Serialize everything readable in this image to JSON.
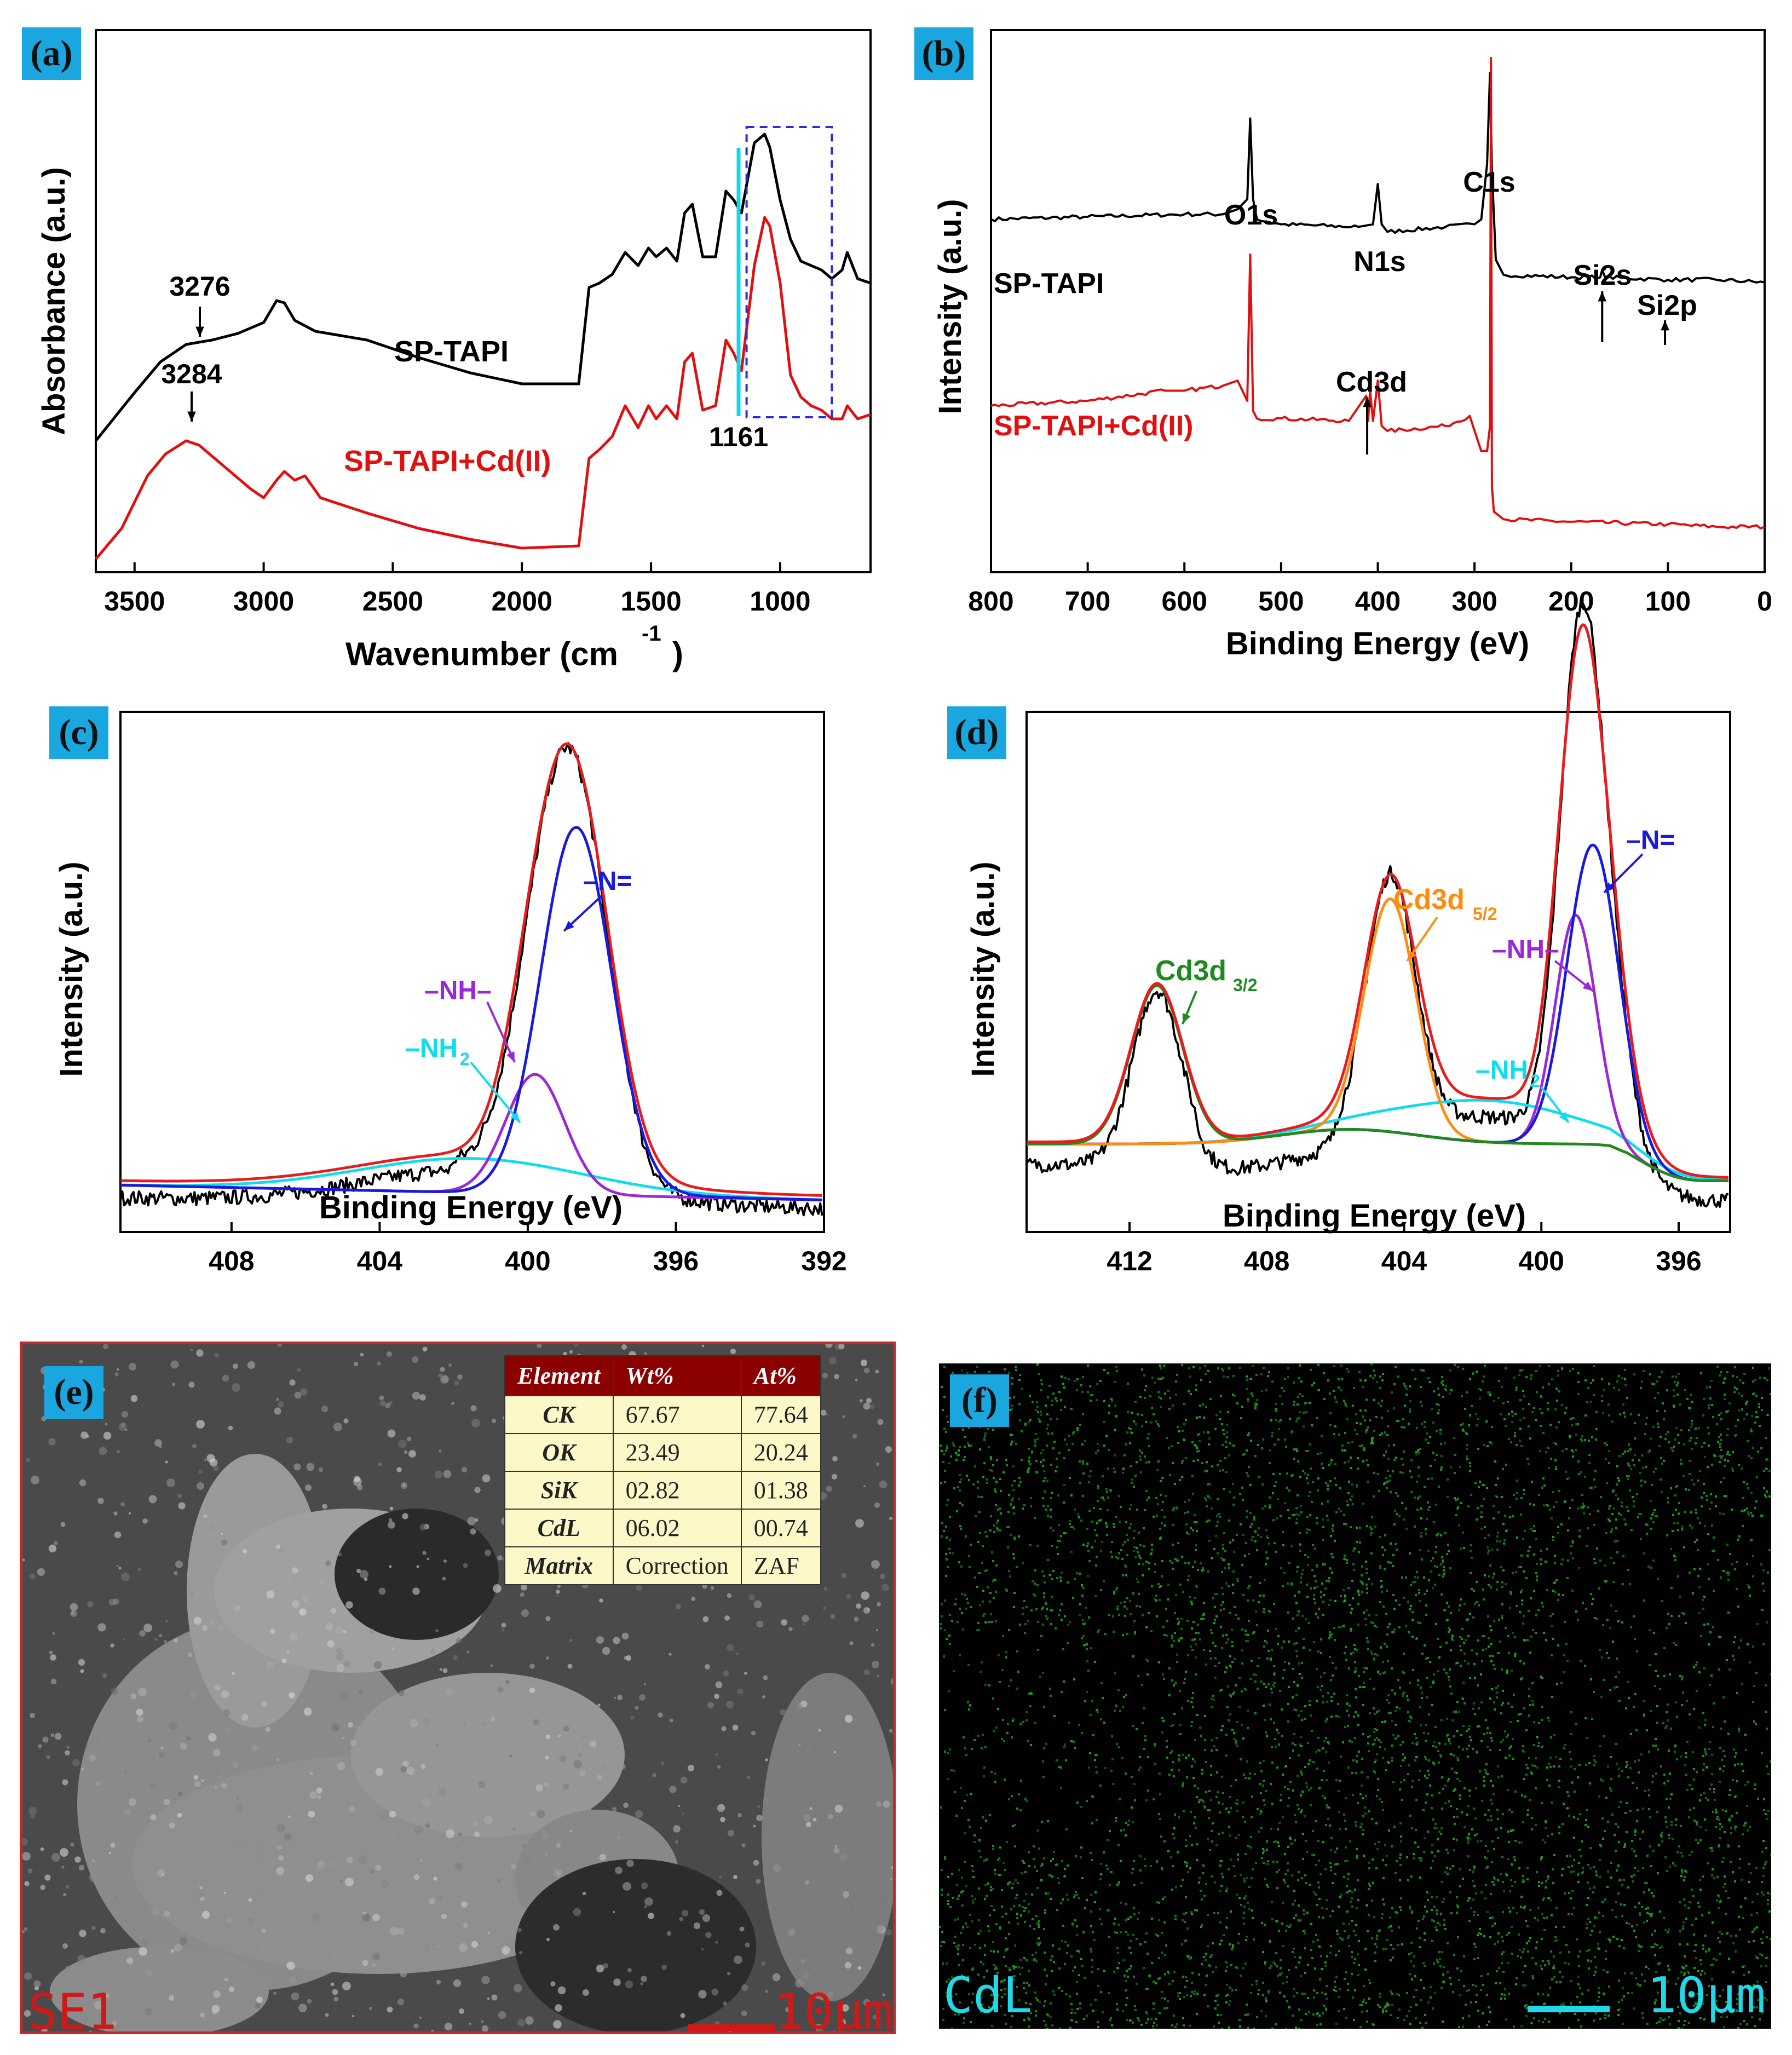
{
  "panels": {
    "a": {
      "label": "(a)",
      "chart_data": {
        "type": "line",
        "xlabel": "Wavenumber (cm",
        "xlabel_sup": "-1",
        "xlabel_end": ")",
        "ylabel": "Absorbance (a.u.)",
        "xlim": [
          3650,
          650
        ],
        "xticks": [
          3500,
          3000,
          2500,
          2000,
          1500,
          1000
        ],
        "series": [
          {
            "name": "SP-TAPI",
            "color": "#000000",
            "x": [
              3650,
              3500,
              3400,
              3300,
              3200,
              3100,
              3000,
              2950,
              2920,
              2880,
              2800,
              2600,
              2400,
              2200,
              2000,
              1780,
              1740,
              1700,
              1650,
              1600,
              1550,
              1510,
              1480,
              1440,
              1400,
              1370,
              1340,
              1300,
              1250,
              1210,
              1180,
              1150,
              1100,
              1060,
              1040,
              1000,
              960,
              920,
              880,
              840,
              800,
              760,
              740,
              700,
              650
            ],
            "y": [
              0.3,
              0.41,
              0.48,
              0.52,
              0.53,
              0.545,
              0.57,
              0.62,
              0.615,
              0.575,
              0.55,
              0.53,
              0.49,
              0.455,
              0.43,
              0.43,
              0.65,
              0.66,
              0.68,
              0.73,
              0.7,
              0.74,
              0.72,
              0.74,
              0.71,
              0.82,
              0.84,
              0.72,
              0.72,
              0.87,
              0.85,
              0.82,
              0.98,
              1.0,
              0.97,
              0.85,
              0.76,
              0.71,
              0.7,
              0.69,
              0.67,
              0.69,
              0.73,
              0.67,
              0.66
            ]
          },
          {
            "name": "SP-TAPI+Cd(II)",
            "color": "#e01010",
            "x": [
              3650,
              3550,
              3450,
              3380,
              3300,
              3250,
              3150,
              3050,
              3000,
              2950,
              2920,
              2880,
              2840,
              2780,
              2600,
              2400,
              2200,
              2000,
              1780,
              1740,
              1700,
              1650,
              1600,
              1550,
              1510,
              1480,
              1440,
              1400,
              1370,
              1340,
              1300,
              1250,
              1210,
              1180,
              1150,
              1100,
              1060,
              1040,
              1000,
              960,
              920,
              880,
              840,
              800,
              760,
              740,
              700,
              650
            ],
            "y": [
              0.03,
              0.1,
              0.22,
              0.27,
              0.3,
              0.29,
              0.24,
              0.19,
              0.17,
              0.21,
              0.23,
              0.21,
              0.22,
              0.17,
              0.135,
              0.1,
              0.075,
              0.055,
              0.06,
              0.26,
              0.28,
              0.31,
              0.38,
              0.33,
              0.38,
              0.35,
              0.38,
              0.35,
              0.48,
              0.5,
              0.37,
              0.38,
              0.53,
              0.5,
              0.46,
              0.7,
              0.81,
              0.79,
              0.66,
              0.45,
              0.4,
              0.38,
              0.37,
              0.35,
              0.35,
              0.38,
              0.35,
              0.36
            ]
          }
        ],
        "annotations": [
          "3276",
          "3284",
          "1161"
        ],
        "series_labels": [
          "SP-TAPI",
          "SP-TAPI+Cd(II)"
        ]
      }
    },
    "b": {
      "label": "(b)",
      "chart_data": {
        "type": "line",
        "xlabel": "Binding Energy (eV)",
        "ylabel": "Intensity (a.u.)",
        "xlim": [
          800,
          0
        ],
        "xticks": [
          800,
          700,
          600,
          500,
          400,
          300,
          200,
          100,
          0
        ],
        "series": [
          {
            "name": "SP-TAPI",
            "color": "#000000",
            "x": [
              800,
              700,
              600,
              560,
              545,
              535,
              532,
              529,
              525,
              500,
              420,
              405,
              400,
              396,
              390,
              330,
              300,
              293,
              287,
              284,
              282,
              278,
              270,
              200,
              170,
              168,
              165,
              100,
              50,
              0
            ],
            "y": [
              0.7,
              0.705,
              0.71,
              0.71,
              0.72,
              0.74,
              0.9,
              0.74,
              0.7,
              0.69,
              0.685,
              0.69,
              0.77,
              0.69,
              0.675,
              0.685,
              0.69,
              0.7,
              0.81,
              0.99,
              0.8,
              0.62,
              0.59,
              0.585,
              0.585,
              0.6,
              0.585,
              0.58,
              0.58,
              0.575
            ]
          },
          {
            "name": "SP-TAPI+Cd(II)",
            "color": "#e01010",
            "x": [
              800,
              700,
              620,
              600,
              560,
              545,
              535,
              532,
              529,
              525,
              500,
              430,
              412,
              410,
              408,
              405,
              400,
              396,
              390,
              330,
              305,
              293,
              287,
              284,
              283,
              282,
              280,
              270,
              200,
              100,
              50,
              0
            ],
            "y": [
              0.33,
              0.34,
              0.36,
              0.36,
              0.37,
              0.38,
              0.34,
              0.63,
              0.32,
              0.305,
              0.305,
              0.3,
              0.35,
              0.3,
              0.36,
              0.3,
              0.38,
              0.29,
              0.28,
              0.29,
              0.31,
              0.24,
              0.24,
              0.29,
              1.02,
              0.17,
              0.12,
              0.105,
              0.1,
              0.095,
              0.09,
              0.09
            ]
          }
        ],
        "annotations": [
          "O1s",
          "N1s",
          "C1s",
          "Si2s",
          "Si2p",
          "Cd3d"
        ],
        "series_labels": [
          "SP-TAPI",
          "SP-TAPI+Cd(II)"
        ]
      }
    },
    "c": {
      "label": "(c)",
      "chart_data": {
        "type": "line",
        "xlabel": "Binding Energy (eV)",
        "ylabel": "Intensity (a.u.)",
        "xlim": [
          411,
          392
        ],
        "xticks": [
          408,
          404,
          400,
          396,
          392
        ],
        "peaks": [
          {
            "name": "-N=",
            "center": 398.7,
            "height": 0.86,
            "width": 0.95,
            "color": "#1a1adc"
          },
          {
            "name": "-NH-",
            "center": 399.8,
            "height": 0.28,
            "width": 0.8,
            "color": "#9a28d8"
          },
          {
            "name": "-NH2",
            "center": 401.5,
            "height": 0.08,
            "width": 3.0,
            "color": "#10dcec"
          }
        ],
        "baseline": {
          "left": 0.02,
          "right": -0.015
        },
        "envelope_color": "#e81c1c",
        "raw_color": "#000000",
        "annotations": [
          "–N=",
          "–NH–",
          "–NH",
          "2"
        ]
      }
    },
    "d": {
      "label": "(d)",
      "chart_data": {
        "type": "line",
        "xlabel": "Binding Energy (eV)",
        "ylabel": "Intensity (a.u.)",
        "xlim": [
          415,
          394.5
        ],
        "xticks": [
          412,
          408,
          404,
          400,
          396
        ],
        "peaks": [
          {
            "name": "Cd3d3/2",
            "center": 411.2,
            "height": 0.38,
            "width": 0.75,
            "color": "#1f8a1f"
          },
          {
            "name": "Cd3d5/2",
            "center": 404.4,
            "height": 0.56,
            "width": 0.75,
            "color": "#ff8c10"
          },
          {
            "name": "-N=",
            "center": 398.5,
            "height": 0.72,
            "width": 0.75,
            "color": "#1a1adc"
          },
          {
            "name": "-NH-",
            "center": 399.0,
            "height": 0.55,
            "width": 0.6,
            "color": "#9a28d8"
          },
          {
            "name": "-NH2",
            "center": 401.5,
            "height": 0.1,
            "width": 2.6,
            "color": "#10dcec"
          }
        ],
        "envelope_color": "#e81c1c",
        "raw_color": "#000000",
        "annotations": [
          "–N=",
          "–NH–",
          "–NH",
          "2",
          "Cd3d",
          "5/2",
          "Cd3d",
          "3/2"
        ]
      }
    },
    "e": {
      "label": "(e)",
      "table": {
        "headers": [
          "Element",
          "Wt%",
          "At%"
        ],
        "rows": [
          [
            "CK",
            "67.67",
            "77.64"
          ],
          [
            "OK",
            "23.49",
            "20.24"
          ],
          [
            "SiK",
            "02.82",
            "01.38"
          ],
          [
            "CdL",
            "06.02",
            "00.74"
          ],
          [
            "Matrix",
            "Correction",
            "ZAF"
          ]
        ]
      },
      "image_label": "SE1",
      "scale_label": "10μm",
      "label_color": "#d01818"
    },
    "f": {
      "label": "(f)",
      "image_label": "CdL",
      "scale_label": "10μm",
      "label_color": "#20d8e8",
      "dot_color": "#1ea01e"
    }
  }
}
